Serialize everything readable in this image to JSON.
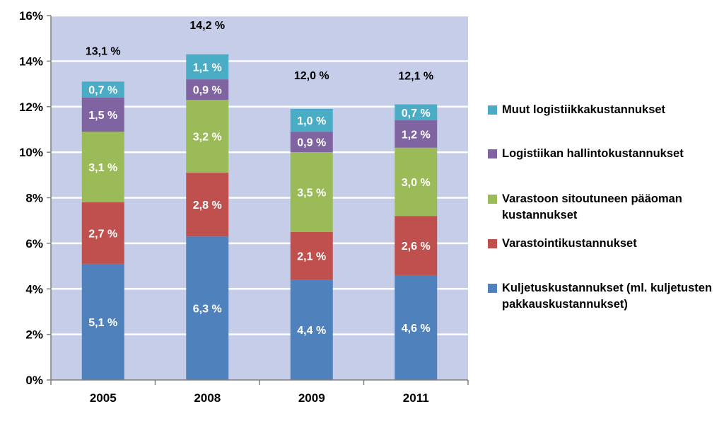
{
  "chart_data": {
    "type": "bar",
    "stacked": true,
    "categories": [
      "2005",
      "2008",
      "2009",
      "2011"
    ],
    "ylim": [
      0,
      16
    ],
    "yticks": [
      0,
      2,
      4,
      6,
      8,
      10,
      12,
      14,
      16
    ],
    "ytick_labels": [
      "0%",
      "2%",
      "4%",
      "6%",
      "8%",
      "10%",
      "12%",
      "14%",
      "16%"
    ],
    "grid": true,
    "legend_position": "right",
    "series": [
      {
        "name": "Kuljetuskustannukset (ml. kuljetusten pakkauskustannukset)",
        "color": "#4f81bd",
        "values": [
          5.1,
          6.3,
          4.4,
          4.6
        ],
        "labels": [
          "5,1 %",
          "6,3 %",
          "4,4 %",
          "4,6 %"
        ]
      },
      {
        "name": "Varastointikustannukset",
        "color": "#c0504d",
        "values": [
          2.7,
          2.8,
          2.1,
          2.6
        ],
        "labels": [
          "2,7 %",
          "2,8 %",
          "2,1 %",
          "2,6 %"
        ]
      },
      {
        "name": "Varastoon sitoutuneen pääoman kustannukset",
        "color": "#9bbb59",
        "values": [
          3.1,
          3.2,
          3.5,
          3.0
        ],
        "labels": [
          "3,1 %",
          "3,2 %",
          "3,5 %",
          "3,0 %"
        ]
      },
      {
        "name": "Logistiikan hallintokustannukset",
        "color": "#8064a2",
        "values": [
          1.5,
          0.9,
          0.9,
          1.2
        ],
        "labels": [
          "1,5 %",
          "0,9 %",
          "0,9 %",
          "1,2 %"
        ]
      },
      {
        "name": "Muut logistiikkakustannukset",
        "color": "#4bacc6",
        "values": [
          0.7,
          1.1,
          1.0,
          0.7
        ],
        "labels": [
          "0,7 %",
          "1,1 %",
          "1,0 %",
          "0,7 %"
        ]
      }
    ],
    "totals": [
      13.1,
      14.2,
      12.0,
      12.1
    ],
    "total_labels": [
      "13,1 %",
      "14,2 %",
      "12,0 %",
      "12,1 %"
    ],
    "colors": {
      "plot_background": "#c5cde9",
      "gridline": "#ffffff",
      "axis": "#808080",
      "text": "#000000",
      "bar_label": "#ffffff"
    }
  },
  "legend": {
    "items": [
      {
        "label": "Muut logistiikkakustannukset",
        "color": "#4bacc6"
      },
      {
        "label": "Logistiikan hallintokustannukset",
        "color": "#8064a2"
      },
      {
        "label": "Varastoon sitoutuneen pääoman kustannukset",
        "color": "#9bbb59"
      },
      {
        "label": "Varastointikustannukset",
        "color": "#c0504d"
      },
      {
        "label": "Kuljetuskustannukset (ml. kuljetusten pakkauskustannukset)",
        "color": "#4f81bd"
      }
    ]
  }
}
